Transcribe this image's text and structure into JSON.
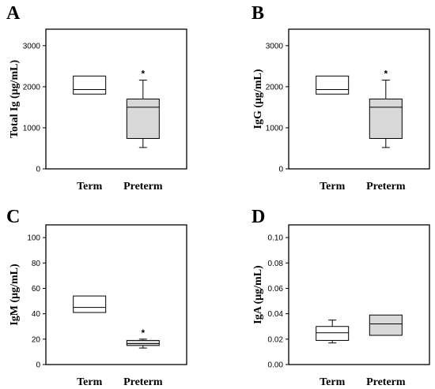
{
  "colors": {
    "term_fill": "#ffffff",
    "preterm_fill": "#d9d9d9",
    "stroke": "#000000"
  },
  "chart_data": [
    {
      "panel": "A",
      "type": "box",
      "ylabel": "Total Ig (μg/mL)",
      "ylim": [
        0,
        3400
      ],
      "yticks": [
        0,
        1000,
        2000,
        3000
      ],
      "tick_decimals": 0,
      "categories": [
        "Term",
        "Preterm"
      ],
      "boxes": [
        {
          "category": "Term",
          "min": null,
          "q1": 1820,
          "median": 1930,
          "q3": 2260,
          "max": null,
          "significance": ""
        },
        {
          "category": "Preterm",
          "min": 520,
          "q1": 740,
          "median": 1500,
          "q3": 1700,
          "max": 2160,
          "significance": "*"
        }
      ]
    },
    {
      "panel": "B",
      "type": "box",
      "ylabel": "IgG (μg/mL)",
      "ylim": [
        0,
        3400
      ],
      "yticks": [
        0,
        1000,
        2000,
        3000
      ],
      "tick_decimals": 0,
      "categories": [
        "Term",
        "Preterm"
      ],
      "boxes": [
        {
          "category": "Term",
          "min": null,
          "q1": 1820,
          "median": 1930,
          "q3": 2260,
          "max": null,
          "significance": ""
        },
        {
          "category": "Preterm",
          "min": 520,
          "q1": 740,
          "median": 1500,
          "q3": 1700,
          "max": 2160,
          "significance": "*"
        }
      ]
    },
    {
      "panel": "C",
      "type": "box",
      "ylabel": "IgM (μg/mL)",
      "ylim": [
        0,
        110
      ],
      "yticks": [
        0,
        20,
        40,
        60,
        80,
        100
      ],
      "tick_decimals": 0,
      "categories": [
        "Term",
        "Preterm"
      ],
      "boxes": [
        {
          "category": "Term",
          "min": null,
          "q1": 41,
          "median": 45,
          "q3": 54,
          "max": null,
          "significance": ""
        },
        {
          "category": "Preterm",
          "min": 13,
          "q1": 15,
          "median": 16.5,
          "q3": 19,
          "max": 20,
          "significance": "*"
        }
      ]
    },
    {
      "panel": "D",
      "type": "box",
      "ylabel": "IgA (μg/mL)",
      "ylim": [
        0,
        0.11
      ],
      "yticks": [
        0.0,
        0.02,
        0.04,
        0.06,
        0.08,
        0.1
      ],
      "tick_decimals": 2,
      "categories": [
        "Term",
        "Preterm"
      ],
      "boxes": [
        {
          "category": "Term",
          "min": 0.017,
          "q1": 0.019,
          "median": 0.025,
          "q3": 0.03,
          "max": 0.035,
          "significance": ""
        },
        {
          "category": "Preterm",
          "min": null,
          "q1": 0.023,
          "median": 0.032,
          "q3": 0.039,
          "max": null,
          "significance": ""
        }
      ]
    }
  ]
}
